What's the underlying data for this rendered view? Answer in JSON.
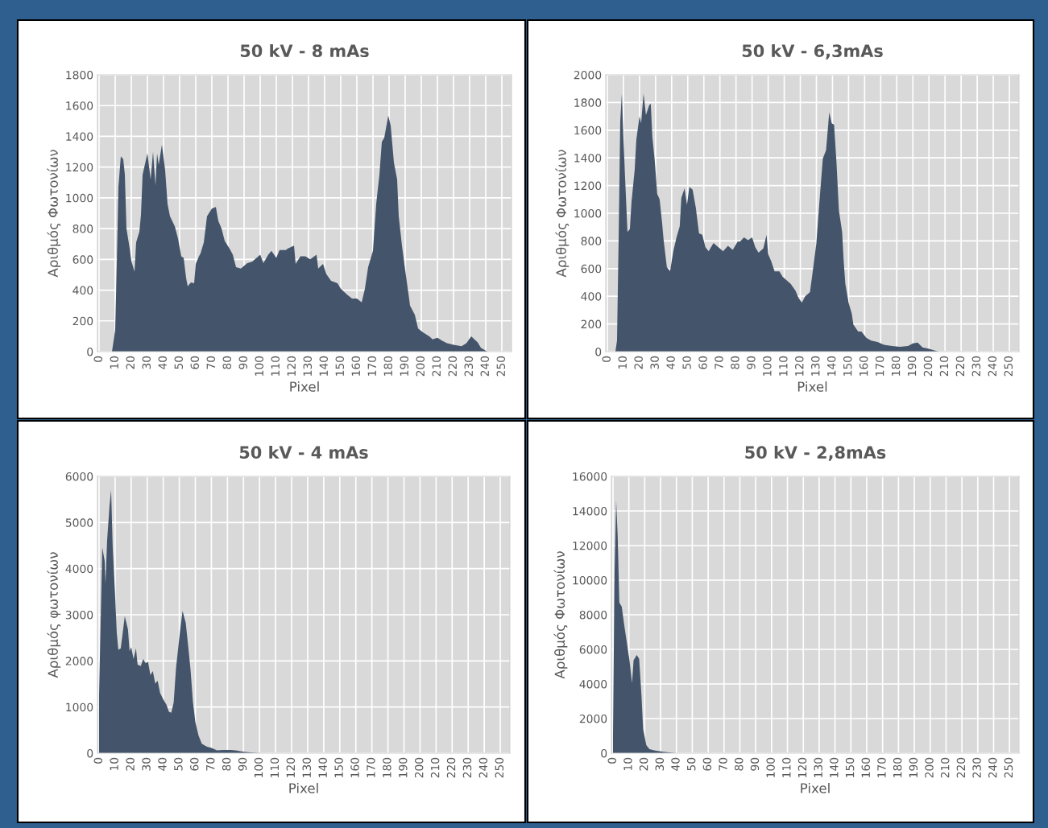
{
  "chart_data": [
    {
      "type": "area",
      "title": "50 kV - 8 mAs",
      "xlabel": "Pixel",
      "ylabel": "Αριθμός Φωτονίων",
      "color": "#44546a",
      "grid": true,
      "x": [
        8,
        10,
        11,
        12,
        13.5,
        15,
        16,
        17,
        19,
        20,
        22,
        23,
        25,
        26,
        27,
        30,
        32,
        33.5,
        35,
        36,
        37,
        39,
        41,
        42.5,
        44,
        47,
        49,
        51,
        52.5,
        54,
        55,
        57,
        59,
        60,
        62,
        63,
        65,
        67,
        70,
        72.5,
        74,
        76,
        78,
        81,
        83,
        85,
        88,
        92,
        95,
        100,
        102,
        105,
        107,
        110,
        112,
        116,
        117,
        121,
        122,
        125,
        128,
        131,
        135,
        136,
        139,
        141,
        144,
        148,
        150,
        154,
        157,
        160,
        163,
        165,
        167,
        170,
        172,
        174,
        175.5,
        177,
        179.5,
        181,
        183,
        185,
        186,
        188,
        190,
        192,
        193,
        196,
        198,
        201,
        205,
        207,
        210,
        213,
        216,
        220,
        225,
        228,
        231,
        235,
        237,
        241
      ],
      "values": [
        0,
        140,
        570,
        1070,
        1270,
        1250,
        1150,
        800,
        670,
        590,
        520,
        710,
        780,
        890,
        1150,
        1290,
        1120,
        1300,
        1080,
        1290,
        1215,
        1345,
        1180,
        960,
        880,
        815,
        735,
        620,
        610,
        480,
        425,
        450,
        445,
        570,
        620,
        640,
        710,
        880,
        930,
        940,
        850,
        800,
        720,
        670,
        630,
        550,
        540,
        575,
        585,
        630,
        575,
        630,
        655,
        610,
        660,
        660,
        670,
        690,
        570,
        620,
        620,
        600,
        630,
        540,
        570,
        505,
        460,
        445,
        410,
        370,
        345,
        345,
        320,
        410,
        550,
        655,
        960,
        1150,
        1365,
        1390,
        1535,
        1470,
        1230,
        1120,
        880,
        690,
        530,
        380,
        300,
        240,
        150,
        125,
        100,
        80,
        90,
        70,
        55,
        45,
        35,
        55,
        100,
        60,
        25,
        0
      ],
      "xlim": [
        -1,
        256
      ],
      "xticks": [
        0,
        10,
        20,
        30,
        40,
        50,
        60,
        70,
        80,
        90,
        100,
        110,
        120,
        130,
        140,
        150,
        160,
        170,
        180,
        190,
        200,
        210,
        220,
        230,
        240,
        250
      ],
      "ylim": [
        0,
        1800
      ],
      "yticks": [
        0,
        200,
        400,
        600,
        800,
        1000,
        1200,
        1400,
        1600,
        1800
      ]
    },
    {
      "type": "area",
      "title": "50 kV - 6,3mAs",
      "xlabel": "Pixel",
      "ylabel": "Αριθμός Φωτονίων",
      "color": "#44546a",
      "grid": true,
      "x": [
        5,
        6,
        7,
        8,
        9,
        10,
        11,
        12.5,
        14,
        15,
        17,
        18,
        20,
        21,
        22.5,
        24,
        26,
        27,
        28,
        29.5,
        31,
        32.5,
        34,
        35,
        37,
        39,
        41,
        43,
        45,
        46,
        48,
        49.5,
        51,
        53,
        55,
        57,
        59,
        61,
        63,
        66,
        68,
        72,
        75,
        78,
        81,
        82.5,
        85,
        87.5,
        90,
        92,
        94,
        97,
        99,
        100,
        102,
        104,
        107,
        109,
        112,
        114,
        117,
        119,
        121,
        123,
        126,
        127.5,
        130,
        132,
        134,
        136,
        138,
        139.5,
        141,
        142.5,
        144,
        146,
        147,
        148,
        150,
        152,
        153,
        156,
        158,
        161,
        164,
        168,
        172,
        177,
        182,
        187,
        190,
        193,
        196,
        200,
        206
      ],
      "values": [
        0,
        80,
        805,
        1660,
        1865,
        1540,
        1260,
        865,
        885,
        1080,
        1315,
        1530,
        1700,
        1650,
        1865,
        1710,
        1780,
        1790,
        1550,
        1375,
        1140,
        1100,
        935,
        805,
        610,
        580,
        725,
        825,
        905,
        1110,
        1180,
        1060,
        1190,
        1170,
        1040,
        855,
        845,
        755,
        725,
        785,
        765,
        725,
        765,
        735,
        795,
        795,
        825,
        805,
        825,
        755,
        715,
        745,
        845,
        705,
        650,
        580,
        580,
        540,
        510,
        490,
        440,
        385,
        355,
        400,
        430,
        560,
        785,
        1100,
        1395,
        1455,
        1730,
        1650,
        1640,
        1365,
        1020,
        865,
        650,
        490,
        355,
        275,
        195,
        145,
        145,
        100,
        80,
        70,
        50,
        40,
        35,
        40,
        60,
        65,
        30,
        20,
        0
      ],
      "xlim": [
        -1,
        256
      ],
      "xticks": [
        0,
        10,
        20,
        30,
        40,
        50,
        60,
        70,
        80,
        90,
        100,
        110,
        120,
        130,
        140,
        150,
        160,
        170,
        180,
        190,
        200,
        210,
        220,
        230,
        240,
        250
      ],
      "ylim": [
        0,
        2000
      ],
      "yticks": [
        0,
        200,
        400,
        600,
        800,
        1000,
        1200,
        1400,
        1600,
        1800,
        2000
      ]
    },
    {
      "type": "area",
      "title": "50 kV - 4 mAs",
      "xlabel": "Pixel",
      "ylabel": "Αριθμός φωτονίων",
      "color": "#44546a",
      "grid": true,
      "x": [
        0,
        2,
        3.5,
        4,
        5,
        6.5,
        7.5,
        8.5,
        10,
        11,
        12,
        13.5,
        15,
        16,
        18,
        19,
        20,
        21.5,
        23,
        24,
        26,
        27.5,
        29,
        30.5,
        32,
        33.5,
        35,
        36.5,
        38,
        40,
        42,
        43.5,
        45,
        46.5,
        48,
        50,
        52,
        54,
        55.5,
        57,
        58.5,
        60,
        62,
        64,
        67,
        70,
        73.5,
        77,
        82,
        85,
        90,
        97,
        101
      ],
      "values": [
        1250,
        4455,
        4165,
        3670,
        4600,
        5360,
        5710,
        4455,
        3410,
        2620,
        2240,
        2270,
        2680,
        2970,
        2680,
        2210,
        2300,
        2040,
        2270,
        1920,
        1890,
        2040,
        1950,
        1980,
        1690,
        1780,
        1510,
        1570,
        1310,
        1165,
        1050,
        900,
        875,
        1105,
        1865,
        2505,
        3085,
        2825,
        2330,
        1805,
        1105,
        670,
        380,
        205,
        145,
        115,
        60,
        70,
        70,
        60,
        30,
        10,
        0
      ],
      "xlim": [
        -1,
        256
      ],
      "xticks": [
        0,
        10,
        20,
        30,
        40,
        50,
        60,
        70,
        80,
        90,
        100,
        110,
        120,
        130,
        140,
        150,
        160,
        170,
        180,
        190,
        200,
        210,
        220,
        230,
        240,
        250
      ],
      "ylim": [
        0,
        6000
      ],
      "yticks": [
        0,
        1000,
        2000,
        3000,
        4000,
        5000,
        6000
      ]
    },
    {
      "type": "area",
      "title": "50 kV - 2,8mAs",
      "xlabel": "Pixel",
      "ylabel": "Αριθμός Φωτονίων",
      "color": "#44546a",
      "grid": true,
      "x": [
        0,
        1,
        2,
        3,
        4,
        5.5,
        7,
        9,
        10.5,
        12,
        13,
        15,
        16.5,
        18,
        19,
        21,
        23,
        26.5,
        31.5,
        36.5,
        40
      ],
      "values": [
        1000,
        10400,
        14600,
        12450,
        8700,
        8480,
        7470,
        6220,
        5290,
        4050,
        5370,
        5680,
        5450,
        3270,
        1400,
        470,
        235,
        155,
        80,
        30,
        0
      ],
      "xlim": [
        -1,
        256
      ],
      "xticks": [
        0,
        10,
        20,
        30,
        40,
        50,
        60,
        70,
        80,
        90,
        100,
        110,
        120,
        130,
        140,
        150,
        160,
        170,
        180,
        190,
        200,
        210,
        220,
        230,
        240,
        250
      ],
      "ylim": [
        0,
        16000
      ],
      "yticks": [
        0,
        2000,
        4000,
        6000,
        8000,
        10000,
        12000,
        14000,
        16000
      ]
    }
  ]
}
